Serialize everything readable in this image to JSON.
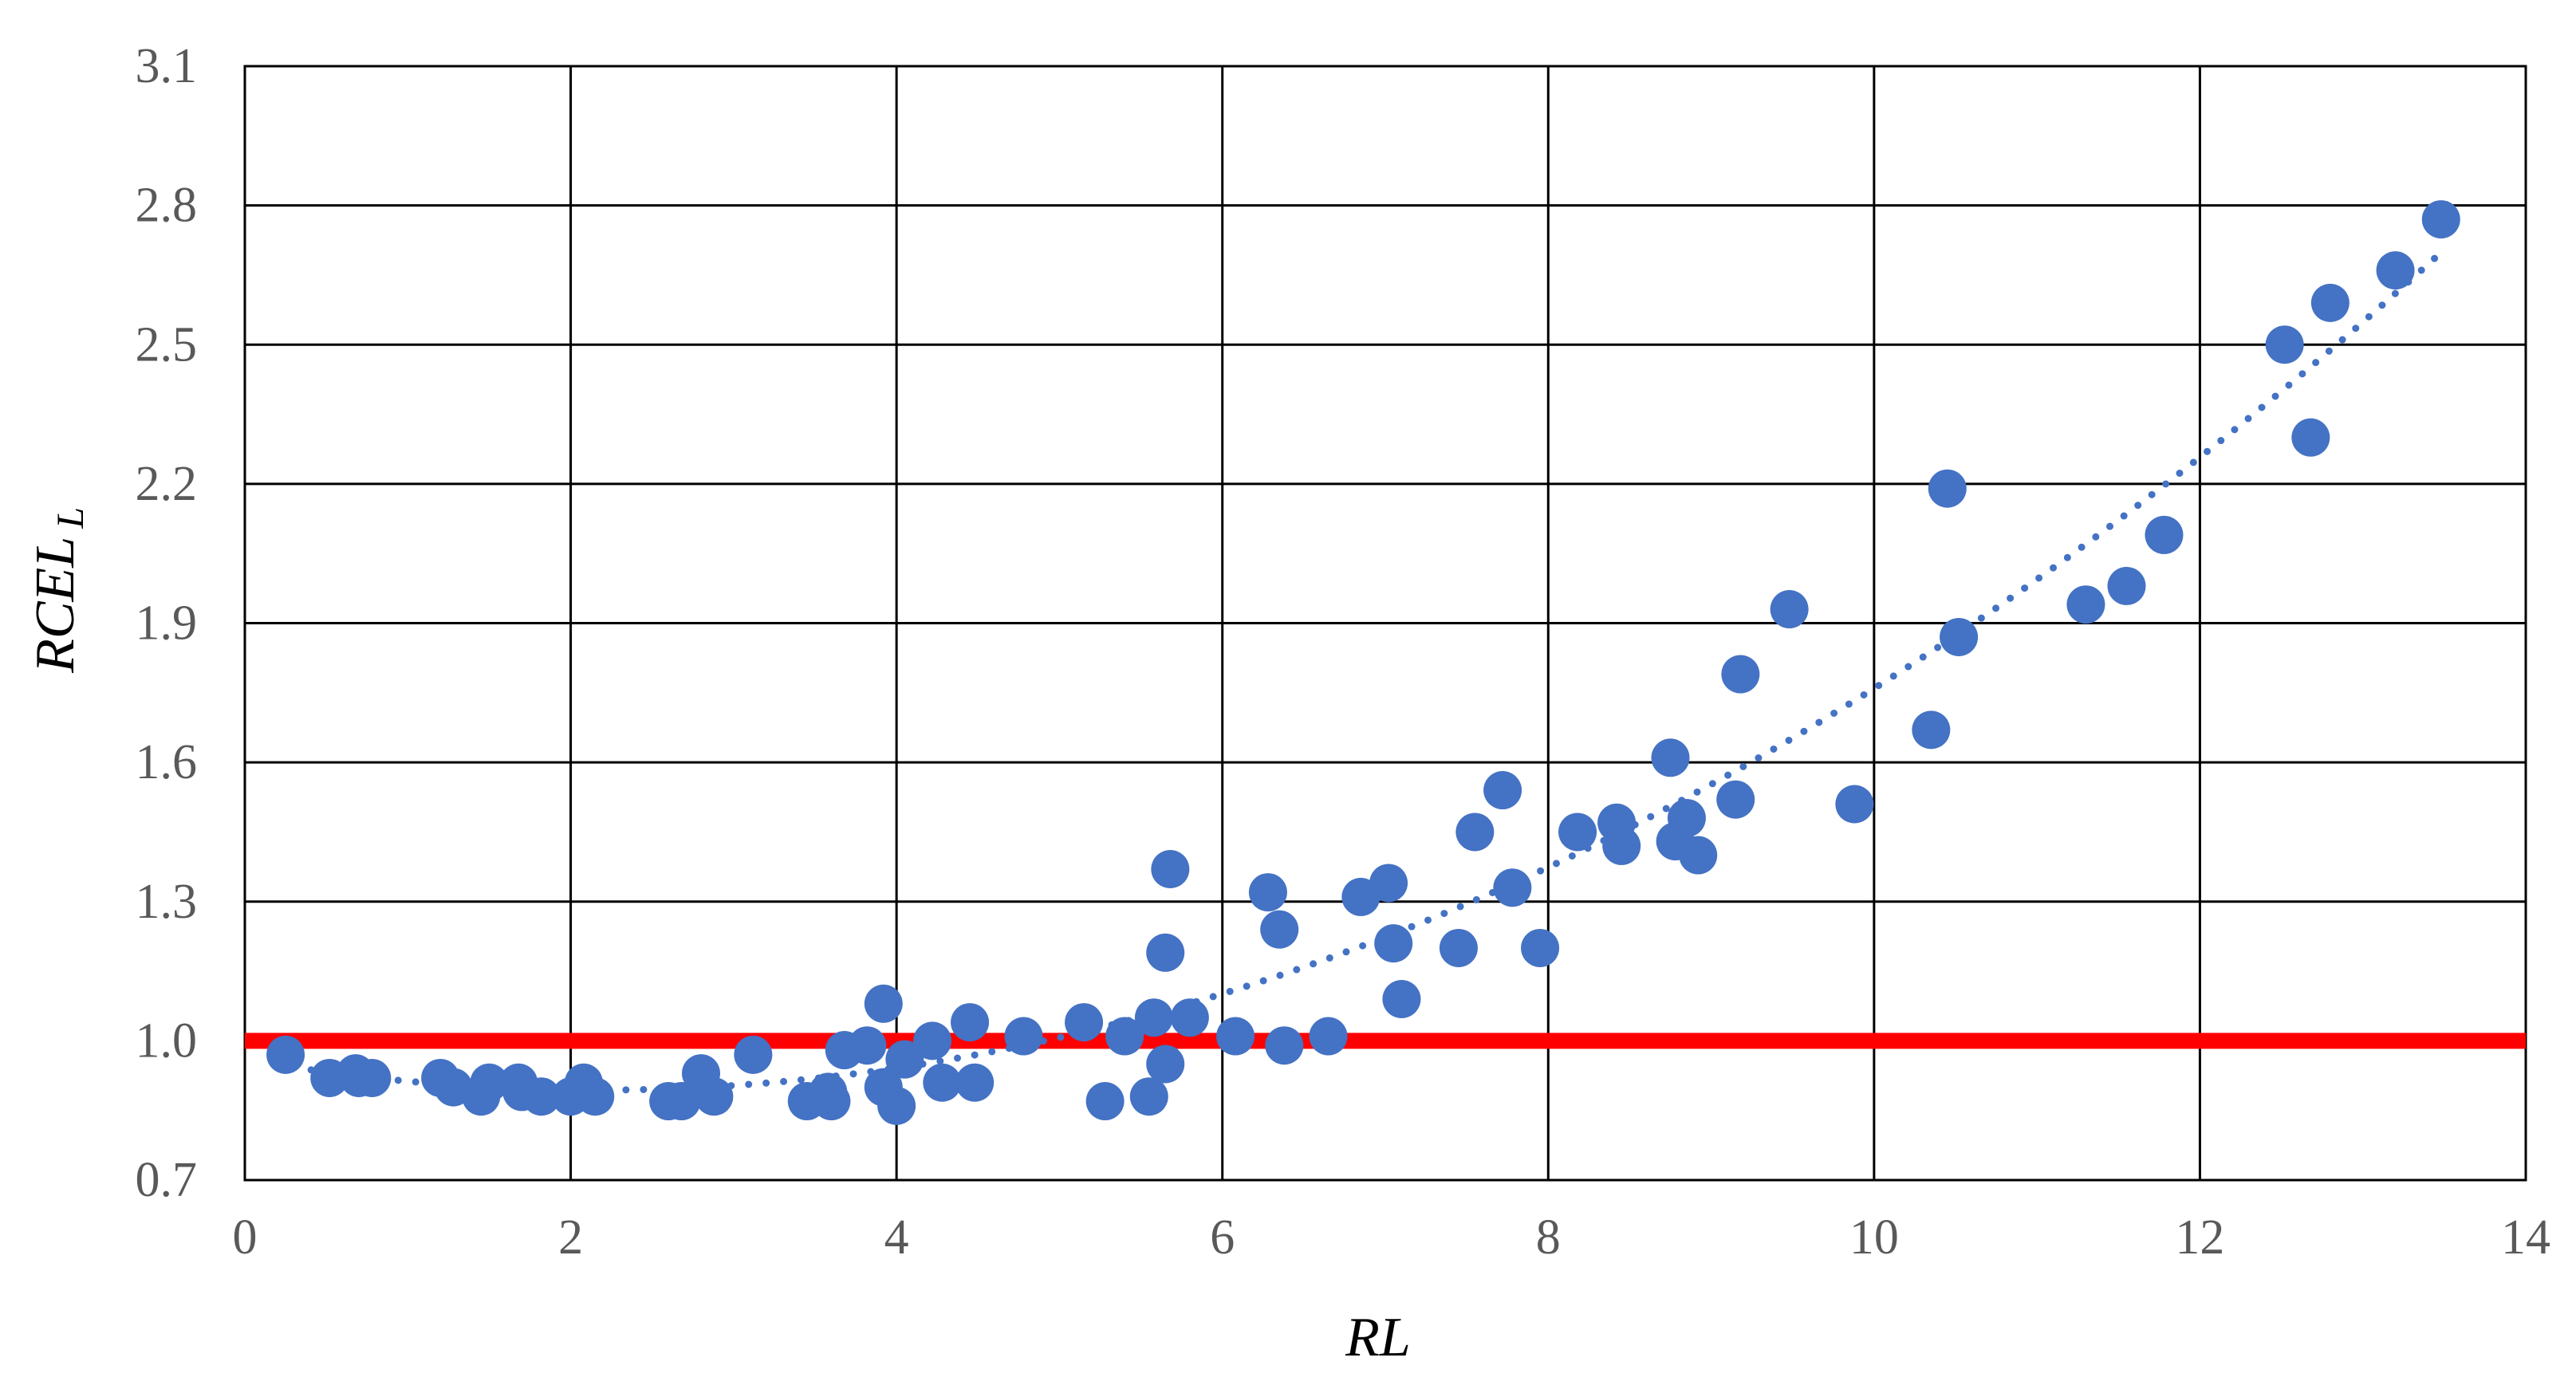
{
  "chart_data": {
    "type": "scatter",
    "xlabel": "RL",
    "ylabel": "RCEL",
    "ylabel_subscript": "L",
    "xlim": [
      0,
      14
    ],
    "ylim": [
      0.7,
      3.1
    ],
    "x_ticks": [
      "0",
      "2",
      "4",
      "6",
      "8",
      "10",
      "12",
      "14"
    ],
    "y_ticks": [
      "0.7",
      "1.0",
      "1.3",
      "1.6",
      "1.9",
      "2.2",
      "2.5",
      "2.8",
      "3.1"
    ],
    "grid": true,
    "legend": "none",
    "colors": {
      "points": "#4472C4",
      "trend": "#4472C4",
      "reference": "#FF0000",
      "grid": "#000000"
    },
    "reference_line": {
      "y": 1.0
    },
    "trendline": {
      "type": "polynomial",
      "style": "dotted",
      "x_range": [
        0.3,
        13.5
      ]
    },
    "series": [
      {
        "points": [
          [
            0.25,
            0.97
          ],
          [
            0.52,
            0.92
          ],
          [
            0.68,
            0.93
          ],
          [
            0.7,
            0.92
          ],
          [
            0.78,
            0.92
          ],
          [
            1.2,
            0.92
          ],
          [
            1.28,
            0.9
          ],
          [
            1.45,
            0.88
          ],
          [
            1.5,
            0.91
          ],
          [
            1.68,
            0.91
          ],
          [
            1.7,
            0.89
          ],
          [
            1.82,
            0.88
          ],
          [
            2.0,
            0.88
          ],
          [
            2.08,
            0.91
          ],
          [
            2.15,
            0.88
          ],
          [
            2.6,
            0.87
          ],
          [
            2.68,
            0.87
          ],
          [
            2.8,
            0.93
          ],
          [
            2.88,
            0.88
          ],
          [
            3.12,
            0.97
          ],
          [
            3.45,
            0.87
          ],
          [
            3.58,
            0.89
          ],
          [
            3.6,
            0.87
          ],
          [
            3.68,
            0.98
          ],
          [
            3.82,
            0.99
          ],
          [
            3.92,
            1.08
          ],
          [
            3.92,
            0.9
          ],
          [
            4.0,
            0.86
          ],
          [
            4.05,
            0.96
          ],
          [
            4.22,
            1.0
          ],
          [
            4.28,
            0.91
          ],
          [
            4.45,
            1.04
          ],
          [
            4.48,
            0.91
          ],
          [
            4.78,
            1.01
          ],
          [
            5.15,
            1.04
          ],
          [
            5.28,
            0.87
          ],
          [
            5.4,
            1.01
          ],
          [
            5.55,
            0.88
          ],
          [
            5.58,
            1.05
          ],
          [
            5.65,
            1.19
          ],
          [
            5.65,
            0.95
          ],
          [
            5.68,
            1.37
          ],
          [
            5.8,
            1.05
          ],
          [
            6.08,
            1.01
          ],
          [
            6.28,
            1.32
          ],
          [
            6.35,
            1.24
          ],
          [
            6.38,
            0.99
          ],
          [
            6.65,
            1.01
          ],
          [
            6.85,
            1.31
          ],
          [
            7.02,
            1.34
          ],
          [
            7.05,
            1.21
          ],
          [
            7.1,
            1.09
          ],
          [
            7.45,
            1.2
          ],
          [
            7.55,
            1.45
          ],
          [
            7.72,
            1.54
          ],
          [
            7.78,
            1.33
          ],
          [
            7.95,
            1.2
          ],
          [
            8.18,
            1.45
          ],
          [
            8.42,
            1.47
          ],
          [
            8.45,
            1.42
          ],
          [
            8.75,
            1.61
          ],
          [
            8.78,
            1.43
          ],
          [
            8.85,
            1.48
          ],
          [
            8.92,
            1.4
          ],
          [
            9.15,
            1.52
          ],
          [
            9.18,
            1.79
          ],
          [
            9.48,
            1.93
          ],
          [
            9.88,
            1.51
          ],
          [
            10.35,
            1.67
          ],
          [
            10.45,
            2.19
          ],
          [
            10.52,
            1.87
          ],
          [
            11.3,
            1.94
          ],
          [
            11.55,
            1.98
          ],
          [
            11.78,
            2.09
          ],
          [
            12.52,
            2.5
          ],
          [
            12.68,
            2.3
          ],
          [
            12.8,
            2.59
          ],
          [
            13.2,
            2.66
          ],
          [
            13.48,
            2.77
          ]
        ]
      }
    ]
  }
}
